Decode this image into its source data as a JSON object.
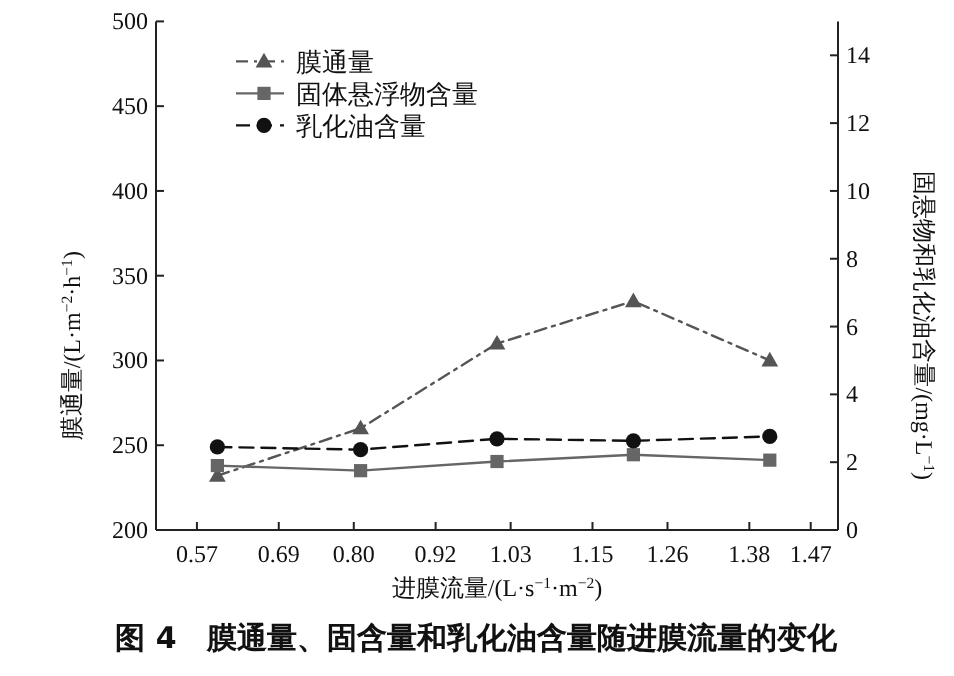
{
  "chart_data": {
    "type": "line",
    "xlabel": "进膜流量/(L·s$^{−1}$·m$^{−2}$)",
    "ylabel": "膜通量/(L·m$^{−2}$·h$^{−1}$)",
    "y2label": "固悬物和乳化油含量/(mg·L$^{−1}$)",
    "annotations": [
      "图 4　膜通量、固含量和乳化油含量随进膜流量的变化"
    ],
    "x": [
      0.6,
      0.81,
      1.01,
      1.21,
      1.41
    ],
    "xlim": [
      0.51,
      1.51
    ],
    "xticks": [
      0.57,
      0.69,
      {
        "value": 0.8,
        "label": "0.80"
      },
      0.92,
      1.03,
      1.15,
      1.26,
      1.38,
      1.47
    ],
    "ylim": [
      200,
      500
    ],
    "yticks": [
      200,
      250,
      300,
      350,
      400,
      450,
      500
    ],
    "y2lim": [
      0,
      15
    ],
    "y2ticks": [
      0,
      2,
      4,
      6,
      8,
      10,
      12,
      14
    ],
    "series": [
      {
        "name": "膜通量",
        "color": "#555555",
        "values": [
          232,
          260,
          310,
          335,
          300
        ],
        "marker": "triangle",
        "line_style": "dashdot"
      },
      {
        "name": "固体悬浮物含量",
        "color": "#666666",
        "values": [
          1.9,
          1.75,
          2.02,
          2.22,
          2.06
        ],
        "axis": "y2",
        "marker": "square",
        "line_style": "solid"
      },
      {
        "name": "乳化油含量",
        "color": "#111111",
        "values": [
          2.45,
          2.37,
          2.69,
          2.63,
          2.76
        ],
        "axis": "y2",
        "marker": "circle",
        "line_style": "dashed"
      }
    ],
    "legend": "top left",
    "grid": false
  }
}
